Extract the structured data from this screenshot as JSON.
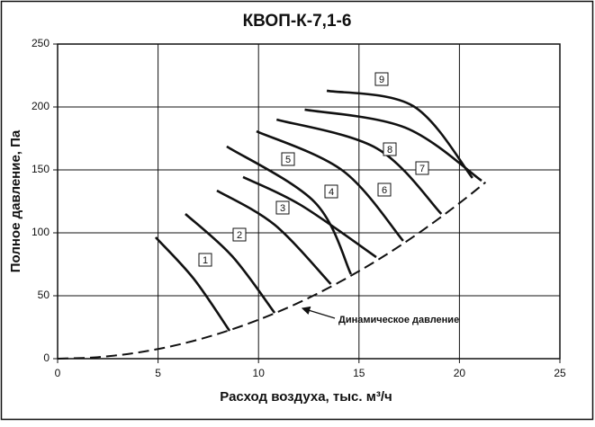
{
  "chart_data": {
    "type": "line",
    "title": "КВОП-К-7,1-6",
    "x_label": "Расход воздуха,  тыс. м³/ч",
    "y_label": "Полное давление, Па",
    "xlim": [
      0,
      25
    ],
    "xticks": [
      0,
      5,
      10,
      15,
      20,
      25
    ],
    "ylim": [
      0,
      250
    ],
    "yticks": [
      0,
      50,
      100,
      150,
      200,
      250
    ],
    "grid": true,
    "series": [
      {
        "name": "1",
        "color": "#111111",
        "x": [
          4.88,
          6.77,
          8.56
        ],
        "values": [
          96.4,
          63.6,
          22.1
        ]
      },
      {
        "name": "2",
        "color": "#111111",
        "x": [
          6.36,
          8.69,
          10.8
        ],
        "values": [
          115,
          81.4,
          36.4
        ]
      },
      {
        "name": "3",
        "color": "#111111",
        "x": [
          7.93,
          10.8,
          13.6
        ],
        "values": [
          133.6,
          106.4,
          59.3
        ]
      },
      {
        "name": "4",
        "color": "#111111",
        "x": [
          9.23,
          12.1,
          15.86
        ],
        "values": [
          144.3,
          122.1,
          80.7
        ]
      },
      {
        "name": "5",
        "color": "#111111",
        "x": [
          8.42,
          12.8,
          14.6
        ],
        "values": [
          168.6,
          124.3,
          67.1
        ]
      },
      {
        "name": "6",
        "color": "#111111",
        "x": [
          9.9,
          14.2,
          17.2
        ],
        "values": [
          180.7,
          149.3,
          93.6
        ]
      },
      {
        "name": "7",
        "color": "#111111",
        "x": [
          10.9,
          15.9,
          19.1
        ],
        "values": [
          190,
          167,
          115
        ]
      },
      {
        "name": "8",
        "color": "#111111",
        "x": [
          12.3,
          17.3,
          21.1
        ],
        "values": [
          197.9,
          183.6,
          141.4
        ]
      },
      {
        "name": "9",
        "color": "#111111",
        "x": [
          13.4,
          17.7,
          20.65
        ],
        "values": [
          212.9,
          200.7,
          143.6
        ]
      },
      {
        "name": "Динамическое давление",
        "color": "#111111",
        "dashed": true,
        "x": [
          0,
          2,
          4,
          6,
          8,
          10,
          12,
          14,
          16,
          18,
          20,
          21.3
        ],
        "values": [
          0,
          1.2,
          4.9,
          11.1,
          19.8,
          30.9,
          44.5,
          60.6,
          79.1,
          100.1,
          123.6,
          140.2
        ]
      }
    ]
  }
}
